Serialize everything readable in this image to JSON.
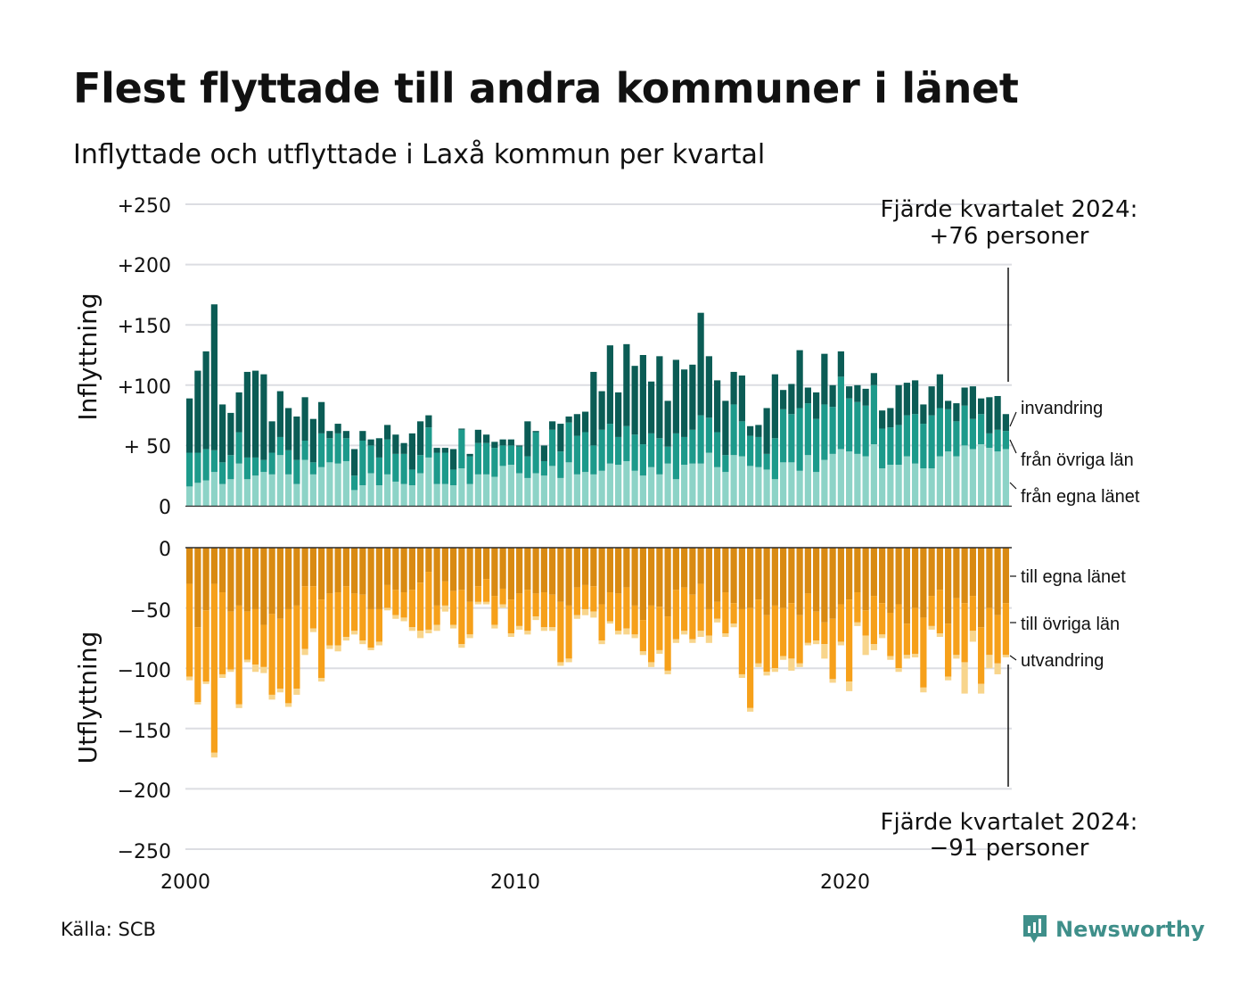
{
  "header": {
    "title": "Flest flyttade till andra kommuner i länet",
    "subtitle": "Inflyttade och utflyttade i Laxå kommun per kvartal"
  },
  "source": "Källa: SCB",
  "brand": {
    "name": "Newsworthy",
    "icon": "chat-chart-icon",
    "color": "#3f8f8a"
  },
  "chart_data": {
    "type": "bar",
    "stacked": true,
    "x": {
      "start_quarter": "2000 Q1",
      "end_quarter": "2024 Q4",
      "ticks": [
        "2000",
        "2010",
        "2020"
      ]
    },
    "y_ticks": [
      "+250",
      "+200",
      "+150",
      "+100",
      "+ 50",
      "0",
      "0",
      "−50",
      "−100",
      "−150",
      "−200",
      "−250"
    ],
    "ylim": [
      -250,
      250
    ],
    "grid": true,
    "panels": [
      {
        "axis_title": "Inflyttning",
        "note_line1": "Fjärde kvartalet 2024:",
        "note_line2": "+76 personer",
        "legend_labels": [
          "invandring",
          "från övriga län",
          "från egna länet"
        ],
        "colors": [
          "#8dd3c7",
          "#1d9a8b",
          "#0b5c55"
        ],
        "series": [
          {
            "name": "från egna länet",
            "values": [
              16,
              19,
              21,
              28,
              18,
              22,
              35,
              22,
              25,
              28,
              26,
              42,
              26,
              18,
              38,
              26,
              32,
              36,
              35,
              37,
              13,
              17,
              27,
              17,
              26,
              20,
              18,
              17,
              27,
              40,
              18,
              18,
              17,
              31,
              18,
              26,
              26,
              24,
              33,
              34,
              27,
              23,
              27,
              25,
              33,
              23,
              36,
              26,
              28,
              26,
              29,
              35,
              34,
              37,
              29,
              25,
              32,
              26,
              35,
              22,
              34,
              35,
              35,
              44,
              32,
              28,
              42,
              41,
              33,
              32,
              30,
              22,
              36,
              36,
              29,
              42,
              28,
              38,
              43,
              47,
              45,
              43,
              41,
              51,
              31,
              34,
              34,
              41,
              35,
              31,
              31,
              41,
              45,
              41,
              50,
              47,
              51,
              48,
              45,
              47
            ]
          },
          {
            "name": "från övriga län",
            "values": [
              28,
              25,
              26,
              18,
              18,
              20,
              26,
              18,
              15,
              10,
              18,
              15,
              20,
              20,
              16,
              10,
              28,
              20,
              25,
              19,
              12,
              37,
              23,
              23,
              29,
              23,
              25,
              13,
              15,
              25,
              26,
              26,
              13,
              32,
              23,
              26,
              26,
              24,
              17,
              16,
              22,
              18,
              34,
              12,
              30,
              22,
              33,
              32,
              33,
              24,
              34,
              33,
              23,
              29,
              30,
              26,
              28,
              30,
              14,
              38,
              23,
              28,
              40,
              29,
              29,
              14,
              42,
              29,
              25,
              25,
              13,
              34,
              44,
              40,
              52,
              43,
              44,
              46,
              39,
              60,
              44,
              43,
              42,
              49,
              33,
              31,
              33,
              34,
              41,
              37,
              44,
              40,
              35,
              29,
              33,
              25,
              25,
              12,
              18,
              15
            ]
          },
          {
            "name": "invandring",
            "values": [
              45,
              68,
              81,
              121,
              48,
              35,
              33,
              71,
              72,
              71,
              26,
              38,
              35,
              36,
              36,
              36,
              26,
              6,
              8,
              6,
              22,
              8,
              5,
              16,
              12,
              16,
              9,
              30,
              28,
              10,
              4,
              4,
              17,
              1,
              2,
              11,
              7,
              5,
              5,
              5,
              1,
              29,
              1,
              13,
              7,
              23,
              5,
              18,
              17,
              61,
              32,
              65,
              37,
              68,
              57,
              74,
              43,
              68,
              38,
              61,
              56,
              54,
              85,
              51,
              43,
              45,
              27,
              38,
              8,
              10,
              38,
              53,
              16,
              25,
              48,
              13,
              22,
              42,
              18,
              21,
              10,
              14,
              14,
              10,
              15,
              16,
              33,
              27,
              28,
              16,
              24,
              28,
              7,
              15,
              15,
              27,
              13,
              30,
              28,
              14
            ]
          }
        ]
      },
      {
        "axis_title": "Utflyttning",
        "note_line1": "Fjärde kvartalet 2024:",
        "note_line2": "−91 personer",
        "legend_labels": [
          "till egna länet",
          "till övriga län",
          "utvandring"
        ],
        "colors": [
          "#d98a12",
          "#f6a01a",
          "#f8d58c"
        ],
        "series": [
          {
            "name": "till egna länet",
            "values": [
              30,
              66,
              52,
              30,
              37,
              53,
              48,
              53,
              51,
              64,
              55,
              59,
              51,
              48,
              32,
              32,
              43,
              38,
              37,
              32,
              38,
              39,
              51,
              51,
              31,
              35,
              37,
              35,
              29,
              20,
              48,
              28,
              36,
              35,
              45,
              32,
              26,
              40,
              34,
              43,
              38,
              35,
              38,
              37,
              39,
              45,
              48,
              33,
              31,
              32,
              47,
              37,
              38,
              33,
              48,
              60,
              48,
              49,
              57,
              35,
              33,
              39,
              30,
              51,
              45,
              37,
              46,
              51,
              50,
              43,
              56,
              48,
              50,
              46,
              56,
              38,
              53,
              62,
              59,
              47,
              43,
              37,
              52,
              40,
              46,
              54,
              47,
              63,
              50,
              58,
              40,
              35,
              63,
              42,
              46,
              40,
              66,
              50,
              56,
              46
            ]
          },
          {
            "name": "till övriga län",
            "values": [
              77,
              62,
              59,
              140,
              68,
              48,
              82,
              40,
              46,
              35,
              67,
              58,
              78,
              69,
              52,
              35,
              65,
              43,
              44,
              42,
              31,
              38,
              32,
              27,
              19,
              21,
              21,
              31,
              40,
              48,
              16,
              20,
              28,
              45,
              27,
              13,
              19,
              24,
              13,
              28,
              27,
              34,
              19,
              29,
              27,
              50,
              44,
              23,
              20,
              21,
              30,
              24,
              31,
              34,
              24,
              26,
              47,
              36,
              45,
              41,
              36,
              37,
              39,
              22,
              14,
              34,
              17,
              54,
              83,
              53,
              47,
              52,
              40,
              46,
              40,
              41,
              24,
              18,
              50,
              31,
              68,
              25,
              21,
              40,
              26,
              36,
              53,
              26,
              38,
              58,
              25,
              36,
              44,
              47,
              49,
              29,
              47,
              39,
              40,
              43
            ]
          },
          {
            "name": "utvandring",
            "values": [
              3,
              2,
              2,
              4,
              3,
              2,
              3,
              2,
              6,
              5,
              4,
              3,
              3,
              5,
              5,
              3,
              3,
              3,
              5,
              3,
              3,
              3,
              2,
              3,
              2,
              3,
              3,
              3,
              6,
              3,
              5,
              5,
              3,
              3,
              3,
              2,
              2,
              3,
              3,
              3,
              3,
              3,
              3,
              3,
              3,
              3,
              3,
              3,
              5,
              5,
              3,
              2,
              3,
              5,
              3,
              3,
              4,
              3,
              3,
              3,
              3,
              3,
              5,
              6,
              3,
              3,
              3,
              3,
              3,
              3,
              3,
              3,
              3,
              10,
              3,
              2,
              3,
              12,
              3,
              3,
              8,
              3,
              16,
              5,
              3,
              3,
              3,
              3,
              3,
              4,
              3,
              3,
              3,
              3,
              26,
              9,
              8,
              11,
              9,
              2
            ]
          }
        ]
      }
    ]
  }
}
